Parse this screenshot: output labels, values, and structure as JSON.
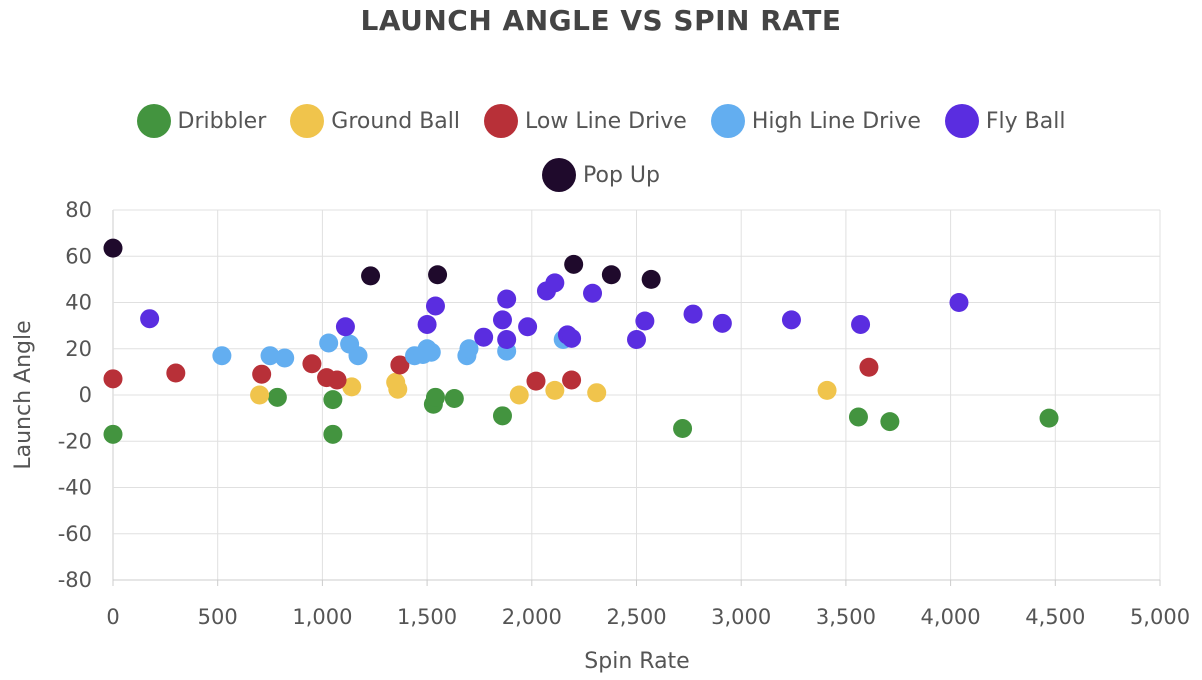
{
  "chart_data": {
    "type": "scatter",
    "title": "LAUNCH ANGLE VS SPIN RATE",
    "xlabel": "Spin Rate",
    "ylabel": "Launch Angle",
    "xlim": [
      0,
      5000
    ],
    "ylim": [
      -80,
      80
    ],
    "x_ticks": [
      "0",
      "500",
      "1,000",
      "1,500",
      "2,000",
      "2,500",
      "3,000",
      "3,500",
      "4,000",
      "4,500",
      "5,000"
    ],
    "y_ticks": [
      "-80",
      "-60",
      "-40",
      "-20",
      "0",
      "20",
      "40",
      "60",
      "80"
    ],
    "grid": true,
    "legend_position": "top",
    "series": [
      {
        "name": "Dribbler",
        "color": "#43943f",
        "points": [
          [
            0,
            -17
          ],
          [
            785,
            -1
          ],
          [
            1050,
            -2
          ],
          [
            1050,
            -17
          ],
          [
            1530,
            -4
          ],
          [
            1540,
            -1
          ],
          [
            1630,
            -1.5
          ],
          [
            1860,
            -9
          ],
          [
            2720,
            -14.5
          ],
          [
            3560,
            -9.5
          ],
          [
            3710,
            -11.5
          ],
          [
            4470,
            -10
          ]
        ]
      },
      {
        "name": "Ground Ball",
        "color": "#f0c44c",
        "points": [
          [
            700,
            0
          ],
          [
            1140,
            3.5
          ],
          [
            1350,
            5.5
          ],
          [
            1360,
            2.5
          ],
          [
            1940,
            0
          ],
          [
            2110,
            2
          ],
          [
            2310,
            1
          ],
          [
            3410,
            2
          ]
        ]
      },
      {
        "name": "Low Line Drive",
        "color": "#b83038",
        "points": [
          [
            0,
            7
          ],
          [
            300,
            9.5
          ],
          [
            710,
            9
          ],
          [
            950,
            13.5
          ],
          [
            1020,
            7.5
          ],
          [
            1070,
            6.5
          ],
          [
            1370,
            13
          ],
          [
            2020,
            6
          ],
          [
            2190,
            6.5
          ],
          [
            3610,
            12
          ]
        ]
      },
      {
        "name": "High Line Drive",
        "color": "#63aef0",
        "points": [
          [
            520,
            17
          ],
          [
            750,
            17
          ],
          [
            820,
            16
          ],
          [
            1030,
            22.5
          ],
          [
            1130,
            22
          ],
          [
            1170,
            17
          ],
          [
            1440,
            17
          ],
          [
            1480,
            17.5
          ],
          [
            1500,
            20
          ],
          [
            1520,
            18.5
          ],
          [
            1690,
            17
          ],
          [
            1700,
            20
          ],
          [
            1880,
            19
          ],
          [
            2150,
            24
          ]
        ]
      },
      {
        "name": "Fly Ball",
        "color": "#5a2de0",
        "points": [
          [
            175,
            33
          ],
          [
            1110,
            29.5
          ],
          [
            1500,
            30.5
          ],
          [
            1540,
            38.5
          ],
          [
            1770,
            25
          ],
          [
            1860,
            32.5
          ],
          [
            1880,
            41.5
          ],
          [
            1880,
            24
          ],
          [
            1980,
            29.5
          ],
          [
            2070,
            45
          ],
          [
            2110,
            48.5
          ],
          [
            2170,
            26
          ],
          [
            2190,
            24.5
          ],
          [
            2290,
            44
          ],
          [
            2500,
            24
          ],
          [
            2540,
            32
          ],
          [
            2770,
            35
          ],
          [
            2910,
            31
          ],
          [
            3240,
            32.5
          ],
          [
            3570,
            30.5
          ],
          [
            4040,
            40
          ]
        ]
      },
      {
        "name": "Pop Up",
        "color": "#1f0a2c",
        "points": [
          [
            0,
            63.5
          ],
          [
            1230,
            51.5
          ],
          [
            1550,
            52
          ],
          [
            2200,
            56.5
          ],
          [
            2380,
            52
          ],
          [
            2570,
            50
          ]
        ]
      }
    ]
  }
}
